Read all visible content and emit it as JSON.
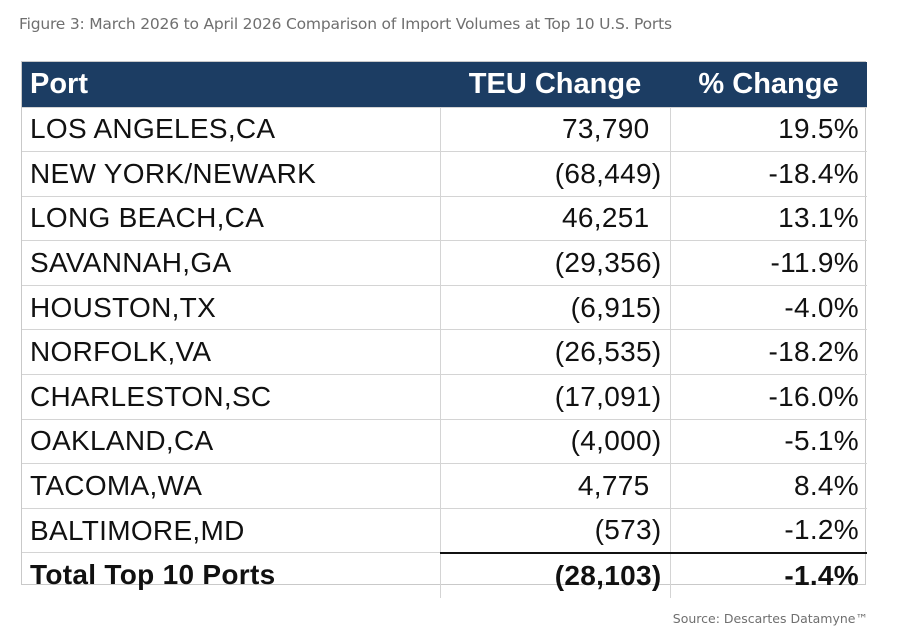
{
  "caption": "Figure 3: March 2026 to April 2026 Comparison of Import Volumes at Top 10 U.S. Ports",
  "source": "Source: Descartes Datamyne™",
  "chart_data": {
    "type": "table",
    "columns": [
      "Port",
      "TEU Change",
      "% Change"
    ],
    "rows": [
      {
        "port": "LOS ANGELES,CA",
        "teu_change": "73,790",
        "pct_change": "19.5%",
        "teu_value": 73790,
        "pct_value": 19.5
      },
      {
        "port": "NEW YORK/NEWARK",
        "teu_change": "(68,449)",
        "pct_change": "-18.4%",
        "teu_value": -68449,
        "pct_value": -18.4
      },
      {
        "port": "LONG BEACH,CA",
        "teu_change": "46,251",
        "pct_change": "13.1%",
        "teu_value": 46251,
        "pct_value": 13.1
      },
      {
        "port": "SAVANNAH,GA",
        "teu_change": "(29,356)",
        "pct_change": "-11.9%",
        "teu_value": -29356,
        "pct_value": -11.9
      },
      {
        "port": "HOUSTON,TX",
        "teu_change": "(6,915)",
        "pct_change": "-4.0%",
        "teu_value": -6915,
        "pct_value": -4.0
      },
      {
        "port": "NORFOLK,VA",
        "teu_change": "(26,535)",
        "pct_change": "-18.2%",
        "teu_value": -26535,
        "pct_value": -18.2
      },
      {
        "port": "CHARLESTON,SC",
        "teu_change": "(17,091)",
        "pct_change": "-16.0%",
        "teu_value": -17091,
        "pct_value": -16.0
      },
      {
        "port": "OAKLAND,CA",
        "teu_change": "(4,000)",
        "pct_change": "-5.1%",
        "teu_value": -4000,
        "pct_value": -5.1
      },
      {
        "port": "TACOMA,WA",
        "teu_change": "4,775",
        "pct_change": "8.4%",
        "teu_value": 4775,
        "pct_value": 8.4
      },
      {
        "port": "BALTIMORE,MD",
        "teu_change": "(573)",
        "pct_change": "-1.2%",
        "teu_value": -573,
        "pct_value": -1.2
      }
    ],
    "total": {
      "port": "Total Top 10 Ports",
      "teu_change": "(28,103)",
      "pct_change": "-1.4%",
      "teu_value": -28103,
      "pct_value": -1.4
    },
    "colors": {
      "header_bg": "#1c3d63",
      "header_text": "#ffffff"
    }
  }
}
